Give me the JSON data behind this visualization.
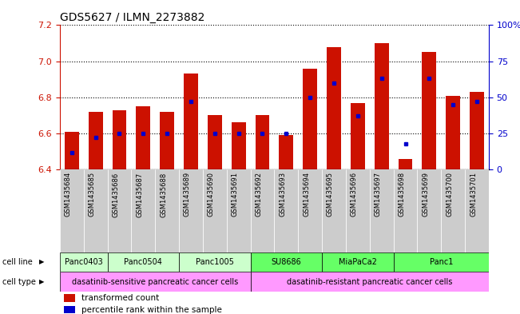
{
  "title": "GDS5627 / ILMN_2273882",
  "samples": [
    "GSM1435684",
    "GSM1435685",
    "GSM1435686",
    "GSM1435687",
    "GSM1435688",
    "GSM1435689",
    "GSM1435690",
    "GSM1435691",
    "GSM1435692",
    "GSM1435693",
    "GSM1435694",
    "GSM1435695",
    "GSM1435696",
    "GSM1435697",
    "GSM1435698",
    "GSM1435699",
    "GSM1435700",
    "GSM1435701"
  ],
  "transformed_count": [
    6.61,
    6.72,
    6.73,
    6.75,
    6.72,
    6.93,
    6.7,
    6.66,
    6.7,
    6.59,
    6.96,
    7.08,
    6.77,
    7.1,
    6.46,
    7.05,
    6.81,
    6.83
  ],
  "percentile_rank": [
    12,
    22,
    25,
    25,
    25,
    47,
    25,
    25,
    25,
    25,
    50,
    60,
    37,
    63,
    18,
    63,
    45,
    47
  ],
  "cell_line_groups": [
    {
      "label": "Panc0403",
      "start": 0,
      "end": 2,
      "color": "#ccffcc"
    },
    {
      "label": "Panc0504",
      "start": 2,
      "end": 5,
      "color": "#ccffcc"
    },
    {
      "label": "Panc1005",
      "start": 5,
      "end": 8,
      "color": "#ccffcc"
    },
    {
      "label": "SU8686",
      "start": 8,
      "end": 11,
      "color": "#66ff66"
    },
    {
      "label": "MiaPaCa2",
      "start": 11,
      "end": 14,
      "color": "#66ff66"
    },
    {
      "label": "Panc1",
      "start": 14,
      "end": 18,
      "color": "#66ff66"
    }
  ],
  "cell_type_groups": [
    {
      "label": "dasatinib-sensitive pancreatic cancer cells",
      "start": 0,
      "end": 8,
      "color": "#ff99ff"
    },
    {
      "label": "dasatinib-resistant pancreatic cancer cells",
      "start": 8,
      "end": 18,
      "color": "#ff99ff"
    }
  ],
  "ylim_left": [
    6.4,
    7.2
  ],
  "ylim_right": [
    0,
    100
  ],
  "yticks_left": [
    6.4,
    6.6,
    6.8,
    7.0,
    7.2
  ],
  "yticks_right": [
    0,
    25,
    50,
    75,
    100
  ],
  "bar_color": "#cc1100",
  "dot_color": "#0000cc",
  "bar_width": 0.6,
  "background_color": "#ffffff",
  "tick_bg_color": "#cccccc",
  "legend": [
    {
      "label": "transformed count",
      "color": "#cc1100"
    },
    {
      "label": "percentile rank within the sample",
      "color": "#0000cc"
    }
  ]
}
